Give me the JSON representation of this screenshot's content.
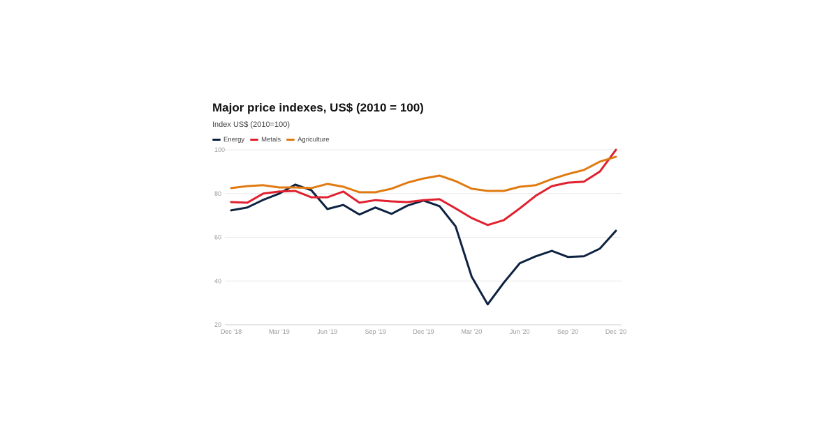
{
  "chart_data": {
    "type": "line",
    "title": "Major price indexes, US$ (2010 = 100)",
    "subtitle": "Index US$ (2010=100)",
    "xlabel": "",
    "ylabel": "",
    "ylim": [
      20,
      100
    ],
    "yticks": [
      "20",
      "40",
      "60",
      "80",
      "100"
    ],
    "xtick_labels": [
      "Dec '18",
      "Mar '19",
      "Jun '19",
      "Sep '19",
      "Dec '19",
      "Mar '20",
      "Jun '20",
      "Sep '20",
      "Dec '20"
    ],
    "x": [
      "Dec 2018",
      "Jan 2019",
      "Feb 2019",
      "Mar 2019",
      "Apr 2019",
      "May 2019",
      "Jun 2019",
      "Jul 2019",
      "Aug 2019",
      "Sep 2019",
      "Oct 2019",
      "Nov 2019",
      "Dec 2019",
      "Jan 2020",
      "Feb 2020",
      "Mar 2020",
      "Apr 2020",
      "May 2020",
      "Jun 2020",
      "Jul 2020",
      "Aug 2020",
      "Sep 2020",
      "Oct 2020",
      "Nov 2020",
      "Dec 2020"
    ],
    "grid": true,
    "legend_placement": "top-left",
    "series": [
      {
        "name": "Energy",
        "color": "#0e2241",
        "values": [
          72.3,
          73.6,
          77.1,
          80.0,
          84.1,
          81.5,
          72.9,
          74.8,
          70.4,
          73.6,
          70.7,
          74.5,
          76.8,
          74.2,
          65.0,
          42.0,
          29.3,
          39.2,
          48.1,
          51.3,
          53.8,
          51.0,
          51.3,
          54.8,
          63.0
        ]
      },
      {
        "name": "Metals",
        "color": "#e0202e",
        "values": [
          76.1,
          75.8,
          80.0,
          80.9,
          81.2,
          78.3,
          78.3,
          80.9,
          75.8,
          77.0,
          76.4,
          76.1,
          77.0,
          77.4,
          73.2,
          68.8,
          65.6,
          67.8,
          73.2,
          79.0,
          83.4,
          85.0,
          85.4,
          90.1,
          100.0
        ]
      },
      {
        "name": "Agriculture",
        "color": "#e07a10",
        "values": [
          82.5,
          83.4,
          83.8,
          82.8,
          82.8,
          82.5,
          84.4,
          83.1,
          80.6,
          80.6,
          82.2,
          85.0,
          86.9,
          88.2,
          85.7,
          82.2,
          81.2,
          81.2,
          83.1,
          83.8,
          86.6,
          88.9,
          90.8,
          94.6,
          96.8
        ]
      }
    ]
  }
}
